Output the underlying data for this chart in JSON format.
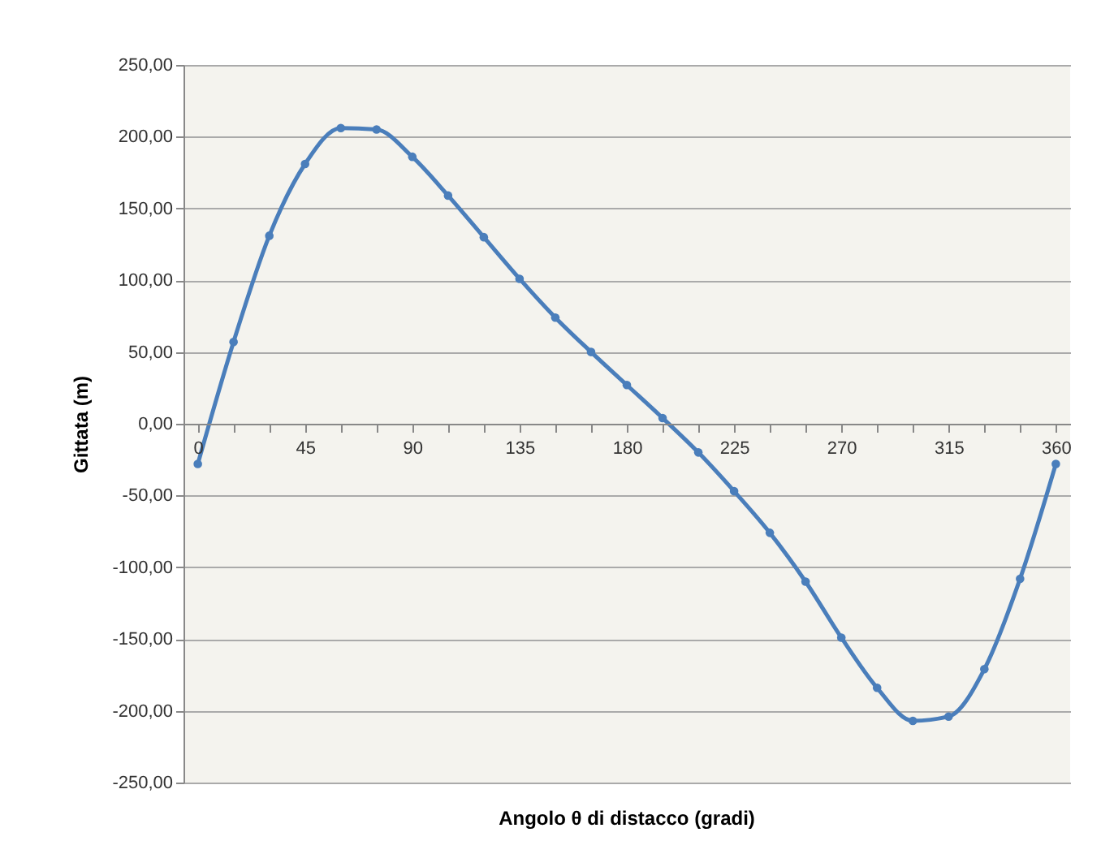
{
  "chart_data": {
    "type": "line",
    "xlabel": "Angolo θ di distacco (gradi)",
    "ylabel": "Gittata (m)",
    "x": [
      0,
      15,
      30,
      45,
      60,
      75,
      90,
      105,
      120,
      135,
      150,
      165,
      180,
      195,
      210,
      225,
      240,
      255,
      270,
      285,
      300,
      315,
      330,
      345,
      360
    ],
    "series": [
      {
        "color": "#4a7ebb",
        "values": [
          -28,
          57,
          131,
          181,
          206,
          205,
          186,
          159,
          130,
          101,
          74,
          50,
          27,
          4,
          -20,
          -47,
          -76,
          -110,
          -149,
          -184,
          -207,
          -204,
          -171,
          -108,
          -28
        ]
      }
    ],
    "xlim": [
      -6,
      366
    ],
    "xticks": [
      0,
      {
        "value": 15,
        "label": null
      },
      {
        "value": 30,
        "label": null
      },
      45,
      {
        "value": 60,
        "label": null
      },
      {
        "value": 75,
        "label": null
      },
      90,
      {
        "value": 105,
        "label": null
      },
      {
        "value": 120,
        "label": null
      },
      135,
      {
        "value": 150,
        "label": null
      },
      {
        "value": 165,
        "label": null
      },
      180,
      {
        "value": 195,
        "label": null
      },
      {
        "value": 210,
        "label": null
      },
      225,
      {
        "value": 240,
        "label": null
      },
      {
        "value": 255,
        "label": null
      },
      270,
      {
        "value": 285,
        "label": null
      },
      {
        "value": 300,
        "label": null
      },
      315,
      {
        "value": 330,
        "label": null
      },
      {
        "value": 345,
        "label": null
      },
      360
    ],
    "ylim": [
      -250,
      250
    ],
    "yticks": [
      {
        "value": -250,
        "label": "-250,00"
      },
      {
        "value": -200,
        "label": "-200,00"
      },
      {
        "value": -150,
        "label": "-150,00"
      },
      {
        "value": -100,
        "label": "-100,00"
      },
      {
        "value": -50,
        "label": "-50,00"
      },
      {
        "value": 0,
        "label": "0,00"
      },
      {
        "value": 50,
        "label": "50,00"
      },
      {
        "value": 100,
        "label": "100,00"
      },
      {
        "value": 150,
        "label": "150,00"
      },
      {
        "value": 200,
        "label": "200,00"
      },
      {
        "value": 250,
        "label": "250,00"
      }
    ],
    "grid": "y",
    "marker": "circle",
    "line_style": "solid"
  }
}
